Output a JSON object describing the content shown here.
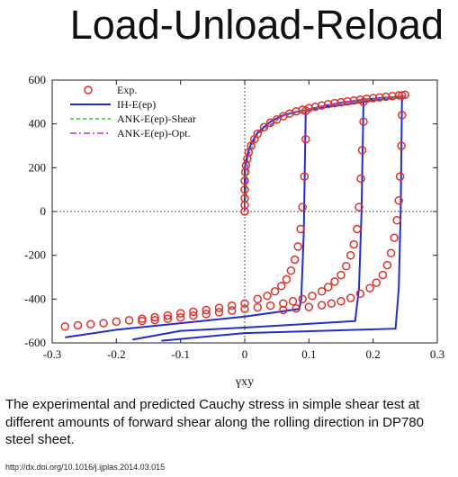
{
  "slide": {
    "title": "Load-Unload-Reload",
    "caption": "The experimental and predicted Cauchy stress in simple shear test at different amounts of forward shear along the rolling direction in DP780 steel sheet.",
    "doi": "http://dx.doi.org/10.1016/j.ijplas.2014.03.015"
  },
  "chart_data": {
    "type": "scatter",
    "xlabel": "γxy",
    "ylabel": "",
    "xlim": [
      -0.3,
      0.3
    ],
    "ylim": [
      -600,
      600
    ],
    "xticks": [
      -0.3,
      -0.2,
      -0.1,
      0,
      0.1,
      0.2,
      0.3
    ],
    "yticks": [
      -600,
      -400,
      -200,
      0,
      200,
      400,
      600
    ],
    "xtick_labels": [
      "-0.3",
      "-0.2",
      "-0.1",
      "0",
      "0.1",
      "0.2",
      "0.3"
    ],
    "ytick_labels": [
      "-600",
      "-400",
      "-200",
      "0",
      "200",
      "400",
      "600"
    ],
    "grid": false,
    "zero_lines": true,
    "legend_position": "top-left",
    "series": [
      {
        "name": "Exp.",
        "style": "circles",
        "color": "#e0302a",
        "points": [
          [
            0.0,
            0
          ],
          [
            0.0,
            30
          ],
          [
            0.0,
            60
          ],
          [
            0.0,
            100
          ],
          [
            0.0,
            140
          ],
          [
            0.001,
            180
          ],
          [
            0.002,
            210
          ],
          [
            0.004,
            240
          ],
          [
            0.006,
            270
          ],
          [
            0.01,
            300
          ],
          [
            0.015,
            330
          ],
          [
            0.02,
            355
          ],
          [
            0.03,
            385
          ],
          [
            0.04,
            405
          ],
          [
            0.05,
            420
          ],
          [
            0.06,
            435
          ],
          [
            0.07,
            447
          ],
          [
            0.08,
            457
          ],
          [
            0.09,
            465
          ],
          [
            0.1,
            472
          ],
          [
            0.11,
            478
          ],
          [
            0.12,
            484
          ],
          [
            0.13,
            490
          ],
          [
            0.14,
            495
          ],
          [
            0.15,
            499
          ],
          [
            0.16,
            503
          ],
          [
            0.17,
            507
          ],
          [
            0.18,
            511
          ],
          [
            0.19,
            515
          ],
          [
            0.2,
            518
          ],
          [
            0.21,
            521
          ],
          [
            0.22,
            524
          ],
          [
            0.23,
            527
          ],
          [
            0.24,
            530
          ],
          [
            0.25,
            533
          ],
          [
            0.095,
            460
          ],
          [
            0.095,
            330
          ],
          [
            0.093,
            160
          ],
          [
            0.09,
            20
          ],
          [
            0.087,
            -80
          ],
          [
            0.083,
            -160
          ],
          [
            0.078,
            -220
          ],
          [
            0.072,
            -270
          ],
          [
            0.065,
            -310
          ],
          [
            0.057,
            -340
          ],
          [
            0.047,
            -365
          ],
          [
            0.035,
            -385
          ],
          [
            0.02,
            -400
          ],
          [
            0.0,
            -420
          ],
          [
            -0.02,
            -430
          ],
          [
            -0.04,
            -440
          ],
          [
            -0.06,
            -450
          ],
          [
            -0.08,
            -458
          ],
          [
            -0.1,
            -465
          ],
          [
            -0.12,
            -475
          ],
          [
            -0.14,
            -483
          ],
          [
            -0.16,
            -490
          ],
          [
            -0.18,
            -497
          ],
          [
            -0.2,
            -503
          ],
          [
            -0.22,
            -510
          ],
          [
            -0.24,
            -515
          ],
          [
            -0.26,
            -520
          ],
          [
            -0.28,
            -525
          ],
          [
            0.185,
            500
          ],
          [
            0.185,
            410
          ],
          [
            0.183,
            280
          ],
          [
            0.181,
            150
          ],
          [
            0.178,
            20
          ],
          [
            0.175,
            -80
          ],
          [
            0.17,
            -150
          ],
          [
            0.165,
            -200
          ],
          [
            0.158,
            -250
          ],
          [
            0.15,
            -290
          ],
          [
            0.14,
            -320
          ],
          [
            0.13,
            -345
          ],
          [
            0.12,
            -365
          ],
          [
            0.105,
            -385
          ],
          [
            0.09,
            -400
          ],
          [
            0.075,
            -410
          ],
          [
            0.06,
            -420
          ],
          [
            0.04,
            -430
          ],
          [
            0.02,
            -438
          ],
          [
            0.0,
            -445
          ],
          [
            -0.02,
            -452
          ],
          [
            -0.04,
            -460
          ],
          [
            -0.06,
            -468
          ],
          [
            -0.08,
            -476
          ],
          [
            -0.1,
            -484
          ],
          [
            -0.12,
            -490
          ],
          [
            -0.14,
            -496
          ],
          [
            -0.16,
            -500
          ],
          [
            0.245,
            530
          ],
          [
            0.245,
            440
          ],
          [
            0.244,
            300
          ],
          [
            0.242,
            160
          ],
          [
            0.24,
            50
          ],
          [
            0.237,
            -40
          ],
          [
            0.233,
            -120
          ],
          [
            0.228,
            -190
          ],
          [
            0.222,
            -245
          ],
          [
            0.215,
            -290
          ],
          [
            0.205,
            -325
          ],
          [
            0.195,
            -350
          ],
          [
            0.18,
            -375
          ],
          [
            0.165,
            -395
          ],
          [
            0.15,
            -410
          ],
          [
            0.135,
            -420
          ],
          [
            0.12,
            -428
          ],
          [
            0.1,
            -436
          ],
          [
            0.08,
            -443
          ],
          [
            0.06,
            -450
          ]
        ]
      },
      {
        "name": "IH-E(ep)",
        "style": "solid",
        "color": "#1f2fc8",
        "points": [
          [
            0.0,
            0
          ],
          [
            0.0,
            200
          ],
          [
            0.005,
            270
          ],
          [
            0.01,
            310
          ],
          [
            0.02,
            360
          ],
          [
            0.04,
            410
          ],
          [
            0.06,
            440
          ],
          [
            0.08,
            455
          ],
          [
            0.095,
            463
          ],
          [
            0.12,
            480
          ],
          [
            0.15,
            497
          ],
          [
            0.185,
            510
          ],
          [
            0.21,
            518
          ],
          [
            0.245,
            525
          ],
          [
            0.095,
            463
          ],
          [
            0.092,
            -100
          ],
          [
            0.088,
            -400
          ],
          [
            0.085,
            -445
          ],
          [
            0.0,
            -480
          ],
          [
            -0.1,
            -510
          ],
          [
            -0.2,
            -540
          ],
          [
            -0.28,
            -575
          ],
          [
            0.185,
            510
          ],
          [
            0.182,
            0
          ],
          [
            0.178,
            -350
          ],
          [
            0.172,
            -500
          ],
          [
            0.0,
            -530
          ],
          [
            -0.1,
            -545
          ],
          [
            -0.175,
            -585
          ],
          [
            0.245,
            525
          ],
          [
            0.243,
            0
          ],
          [
            0.24,
            -350
          ],
          [
            0.235,
            -535
          ],
          [
            0.0,
            -555
          ],
          [
            -0.13,
            -590
          ]
        ]
      },
      {
        "name": "ANK-E(ep)-Shear",
        "style": "dashed",
        "color": "#2ec82e",
        "points": [
          [
            0.0,
            0
          ],
          [
            0.005,
            250
          ],
          [
            0.02,
            350
          ],
          [
            0.06,
            435
          ],
          [
            0.095,
            462
          ],
          [
            0.15,
            497
          ],
          [
            0.25,
            526
          ]
        ]
      },
      {
        "name": "ANK-E(ep)-Opt.",
        "style": "dashdot",
        "color": "#d42ad4",
        "points": [
          [
            0.0,
            0
          ],
          [
            0.005,
            255
          ],
          [
            0.02,
            355
          ],
          [
            0.06,
            438
          ],
          [
            0.095,
            464
          ],
          [
            0.15,
            499
          ],
          [
            0.25,
            528
          ]
        ]
      }
    ]
  }
}
